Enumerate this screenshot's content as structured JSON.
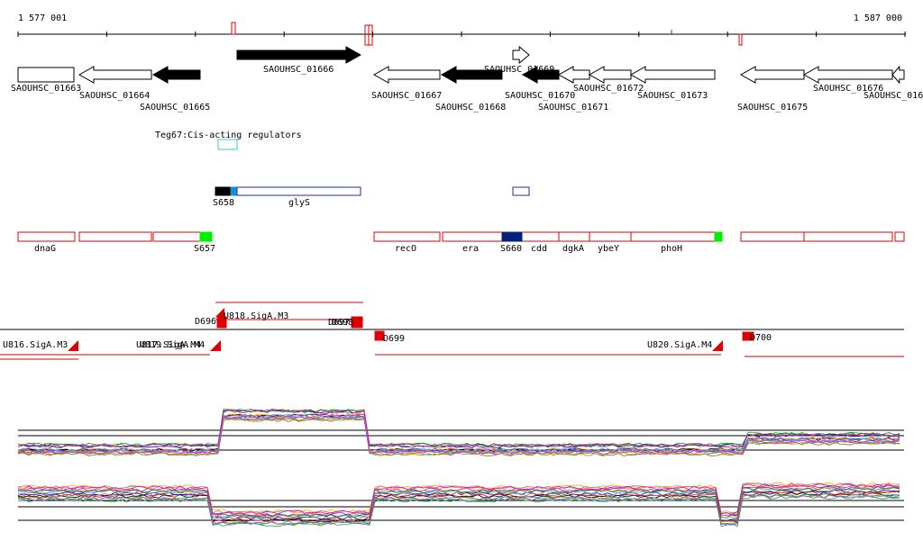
{
  "ruler": {
    "start": "1 577 001",
    "end": "1 587 000"
  },
  "genes": [
    "SAOUHSC_01663",
    "SAOUHSC_01664",
    "SAOUHSC_01665",
    "SAOUHSC_01666",
    "SAOUHSC_01667",
    "SAOUHSC_01668",
    "SAOUHSC_01669",
    "SAOUHSC_01670",
    "SAOUHSC_01671",
    "SAOUHSC_01672",
    "SAOUHSC_01673",
    "SAOUHSC_01675",
    "SAOUHSC_01676",
    "SAOUHSC_016"
  ],
  "annotation": "Teg67:Cis-acting regulators",
  "features_top": [
    "S658",
    "glyS"
  ],
  "features": [
    "dnaG",
    "S657",
    "recO",
    "era",
    "S660",
    "cdd",
    "dgkA",
    "ybeY",
    "phoH"
  ],
  "transcripts": [
    "D696",
    "U818.SigA.M3",
    "D697",
    "D698",
    "U816.SigA.M3",
    "U817.SigA.M4",
    "U819.SigA.M4",
    "D699",
    "U820.SigA.M4",
    "D700"
  ]
}
